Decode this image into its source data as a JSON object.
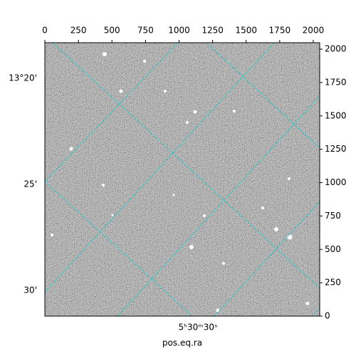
{
  "chart_data": {
    "type": "image",
    "x_label": "pos.eq.ra",
    "xlim": [
      0,
      2048
    ],
    "ylim": [
      0,
      2048
    ],
    "xticks": [
      0,
      250,
      500,
      750,
      1000,
      1250,
      1500,
      1750,
      2000
    ],
    "yticks": [
      0,
      250,
      500,
      750,
      1000,
      1250,
      1500,
      1750,
      2000
    ],
    "world_y_labels": [
      "13°20'",
      "25'",
      "30'"
    ],
    "world_x_label": "5ʰ30ᵐ30ˢ"
  }
}
